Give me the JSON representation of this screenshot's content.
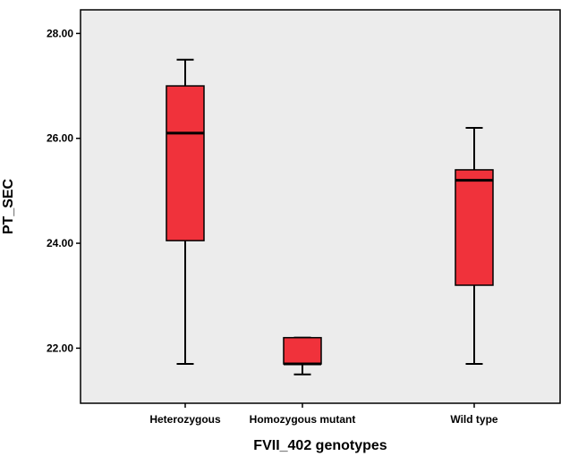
{
  "chart_data": {
    "type": "boxplot",
    "xlabel": "FVII_402 genotypes",
    "ylabel": "PT_SEC",
    "ylim": [
      20.95,
      28.45
    ],
    "yticks": [
      22,
      24,
      26,
      28
    ],
    "ytick_labels": [
      "22.00",
      "24.00",
      "26.00",
      "28.00"
    ],
    "grid": false,
    "legend": "none",
    "colors": {
      "plot_background": "#ececec",
      "box_fill": "#f0323b",
      "stroke": "#000000"
    },
    "categories": [
      "Heterozygous",
      "Homozygous mutant",
      "Wild type"
    ],
    "boxes": [
      {
        "whisker_low": 21.7,
        "q1": 24.05,
        "median": 26.1,
        "q3": 27.0,
        "whisker_high": 27.5
      },
      {
        "whisker_low": 21.5,
        "q1": 21.7,
        "median": 21.7,
        "q3": 22.2,
        "whisker_high": 22.2
      },
      {
        "whisker_low": 21.7,
        "q1": 23.2,
        "median": 25.2,
        "q3": 25.4,
        "whisker_high": 26.2
      }
    ]
  }
}
